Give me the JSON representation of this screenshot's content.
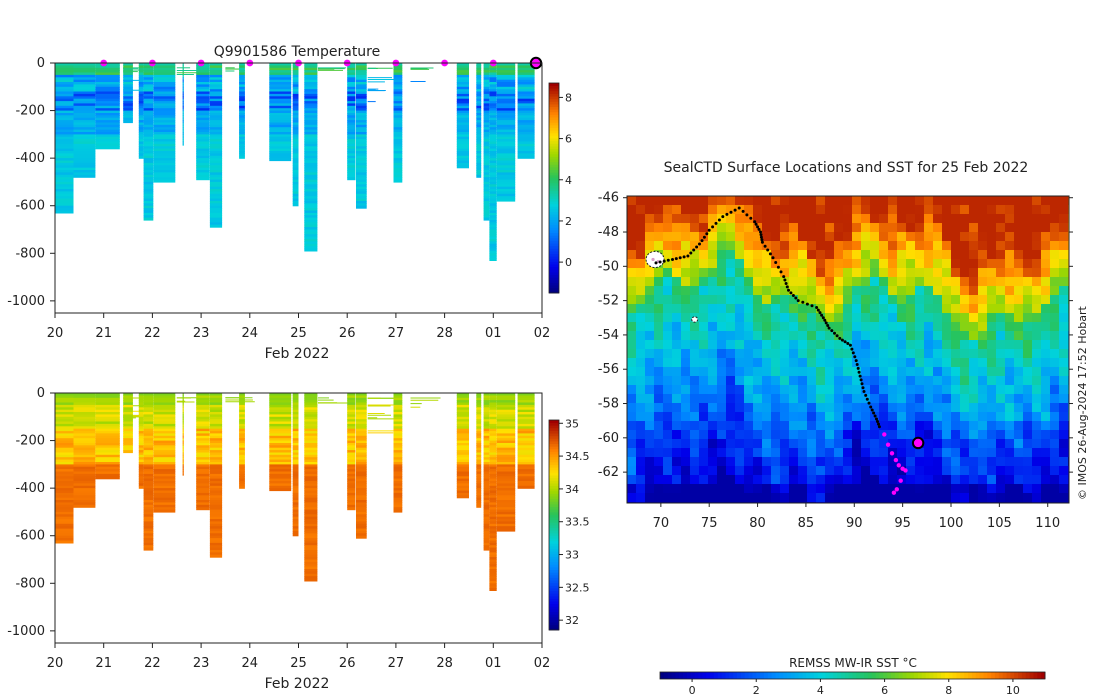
{
  "chart_data": [
    {
      "id": "temperature_section",
      "type": "heatmap",
      "title": "Q9901586  Temperature",
      "xlabel": "Feb 2022",
      "ylabel": "",
      "x_ticks": [
        "20",
        "21",
        "22",
        "23",
        "24",
        "25",
        "26",
        "27",
        "28",
        "01",
        "02"
      ],
      "x_range_days": [
        0,
        10
      ],
      "y_ticks": [
        0,
        -200,
        -400,
        -600,
        -800,
        -1000
      ],
      "ylim": [
        -1030,
        10
      ],
      "colorbar": {
        "min": -1.5,
        "max": 8.7,
        "ticks": [
          0,
          2,
          4,
          6,
          8
        ],
        "colormap": "jet"
      },
      "surface_markers_day": [
        1,
        2,
        3,
        4,
        5,
        6,
        7,
        8,
        9
      ],
      "current_marker_day": 10,
      "profiles": [
        {
          "day": 0.0,
          "depth": 315,
          "mode": "lines"
        },
        {
          "day": 0.0,
          "depth": 630,
          "mode": "block",
          "w": 0.38
        },
        {
          "day": 0.38,
          "depth": 480,
          "mode": "block",
          "w": 0.45
        },
        {
          "day": 0.83,
          "depth": 360,
          "mode": "block",
          "w": 0.5
        },
        {
          "day": 1.4,
          "depth": 100,
          "mode": "lines"
        },
        {
          "day": 1.4,
          "depth": 250,
          "mode": "block",
          "w": 0.2
        },
        {
          "day": 1.72,
          "depth": 400,
          "mode": "block",
          "w": 0.1
        },
        {
          "day": 1.82,
          "depth": 660,
          "mode": "block",
          "w": 0.2
        },
        {
          "day": 2.02,
          "depth": 500,
          "mode": "block",
          "w": 0.45
        },
        {
          "day": 2.5,
          "depth": 30,
          "mode": "lines"
        },
        {
          "day": 2.62,
          "depth": 345,
          "mode": "line",
          "w": 0.04
        },
        {
          "day": 2.9,
          "depth": 490,
          "mode": "block",
          "w": 0.28
        },
        {
          "day": 3.18,
          "depth": 690,
          "mode": "block",
          "w": 0.25
        },
        {
          "day": 3.5,
          "depth": 20,
          "mode": "lines"
        },
        {
          "day": 3.78,
          "depth": 400,
          "mode": "block",
          "w": 0.12
        },
        {
          "day": 4.4,
          "depth": 410,
          "mode": "block",
          "w": 0.45
        },
        {
          "day": 4.88,
          "depth": 600,
          "mode": "block",
          "w": 0.12
        },
        {
          "day": 5.12,
          "depth": 790,
          "mode": "block",
          "w": 0.27
        },
        {
          "day": 5.4,
          "depth": 30,
          "mode": "lines"
        },
        {
          "day": 6.0,
          "depth": 490,
          "mode": "block",
          "w": 0.17
        },
        {
          "day": 6.18,
          "depth": 610,
          "mode": "block",
          "w": 0.22
        },
        {
          "day": 6.42,
          "depth": 150,
          "mode": "lines"
        },
        {
          "day": 6.95,
          "depth": 500,
          "mode": "block",
          "w": 0.18
        },
        {
          "day": 7.3,
          "depth": 60,
          "mode": "lines"
        },
        {
          "day": 8.25,
          "depth": 440,
          "mode": "block",
          "w": 0.25
        },
        {
          "day": 8.65,
          "depth": 480,
          "mode": "block",
          "w": 0.1
        },
        {
          "day": 8.8,
          "depth": 660,
          "mode": "block",
          "w": 0.12
        },
        {
          "day": 8.92,
          "depth": 830,
          "mode": "block",
          "w": 0.15
        },
        {
          "day": 9.07,
          "depth": 580,
          "mode": "block",
          "w": 0.38
        },
        {
          "day": 9.5,
          "depth": 400,
          "mode": "block",
          "w": 0.35
        }
      ]
    },
    {
      "id": "salinity_section",
      "type": "heatmap",
      "title": "",
      "xlabel": "Feb 2022",
      "x_ticks": [
        "20",
        "21",
        "22",
        "23",
        "24",
        "25",
        "26",
        "27",
        "28",
        "01",
        "02"
      ],
      "y_ticks": [
        0,
        -200,
        -400,
        -600,
        -800,
        -1000
      ],
      "ylim": [
        -1030,
        10
      ],
      "colorbar": {
        "min": 31.85,
        "max": 35.05,
        "ticks": [
          32,
          32.5,
          33,
          33.5,
          34,
          34.5,
          35
        ],
        "colormap": "jet"
      }
    },
    {
      "id": "surface_map",
      "type": "scatter",
      "title": "SealCTD Surface Locations and SST for 25 Feb 2022",
      "x_ticks": [
        70,
        75,
        80,
        85,
        90,
        95,
        100,
        105,
        110
      ],
      "y_ticks": [
        -46,
        -48,
        -50,
        -52,
        -54,
        -56,
        -58,
        -60,
        -62
      ],
      "xlim": [
        66.5,
        112.2
      ],
      "ylim": [
        -63.8,
        -45.9
      ],
      "colorbar_label": "REMSS MW-IR SST °C",
      "colorbar": {
        "min": -1,
        "max": 11,
        "ticks": [
          0,
          2,
          4,
          6,
          8,
          10
        ],
        "colormap": "jet"
      },
      "track_lon": [
        69.5,
        71.2,
        72.8,
        74,
        75,
        76.4,
        78.1,
        79.7,
        80.3,
        80.5,
        81.6,
        82.7,
        83.2,
        84.2,
        86.1,
        86.8,
        87.4,
        88.5,
        89.6,
        90.2,
        90.6,
        91,
        91.7,
        92.3,
        92.7
      ],
      "track_lat": [
        -49.8,
        -49.6,
        -49.4,
        -48.7,
        -47.9,
        -47.1,
        -46.6,
        -47.4,
        -48,
        -48.6,
        -49.5,
        -50.6,
        -51.4,
        -52,
        -52.4,
        -53,
        -53.6,
        -54.2,
        -54.6,
        -55.5,
        -56.4,
        -57.3,
        -58.2,
        -58.9,
        -59.5
      ],
      "recent_lon": [
        93.1,
        93.5,
        93.9,
        94.3,
        94.6,
        95,
        95.3,
        94.8,
        94.4,
        94.1
      ],
      "recent_lat": [
        -59.8,
        -60.4,
        -60.9,
        -61.3,
        -61.6,
        -61.8,
        -61.9,
        -62.5,
        -63,
        -63.2
      ],
      "current_position": {
        "lon": 96.6,
        "lat": -60.3
      },
      "island_markers": [
        {
          "lon": 69.4,
          "lat": -49.6
        },
        {
          "lon": 73.5,
          "lat": -53.1
        }
      ],
      "sst_field": {
        "west_value": 4.2,
        "east_value": 5.6,
        "front_lat_west": -50.5,
        "south_min": -0.5,
        "north_max": 10.5
      }
    }
  ],
  "watermark": "© IMOS 26-Aug-2024 17:52 Hobart"
}
